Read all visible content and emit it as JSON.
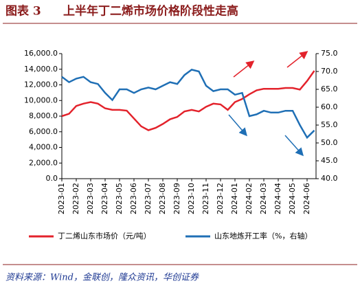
{
  "figure_label": "图表 3",
  "chart_data": {
    "type": "line",
    "title": "上半年丁二烯市场价格阶段性走高",
    "categories": [
      "2023-01",
      null,
      "2023-02",
      null,
      "2023-03",
      null,
      "2023-04",
      null,
      "2023-05",
      null,
      "2023-06",
      null,
      "2023-07",
      null,
      "2023-08",
      null,
      "2023-09",
      null,
      "2023-10",
      null,
      "2023-11",
      null,
      "2023-12",
      null,
      "2024-01",
      null,
      "2024-02",
      null,
      "2024-03",
      null,
      "2024-04",
      null,
      "2024-05",
      null,
      "2024-06",
      null
    ],
    "series": [
      {
        "name": "丁二烯山东市场价（元/吨）",
        "color": "#e3222b",
        "values": [
          8000,
          8300,
          9300,
          9600,
          9800,
          9600,
          9000,
          8800,
          8800,
          8700,
          7700,
          6700,
          6200,
          6500,
          7000,
          7600,
          7900,
          8600,
          8800,
          8600,
          9200,
          9600,
          9500,
          8800,
          9800,
          10200,
          10800,
          11300,
          11500,
          11500,
          11500,
          11600,
          11600,
          11400,
          12500,
          13800
        ]
      },
      {
        "name": "山东地炼开工率（%，右轴）",
        "color": "#1f6fb5",
        "axis": "y2",
        "values": [
          68.5,
          67,
          68,
          68.5,
          67,
          66.5,
          64,
          62,
          65,
          65,
          64,
          65,
          65.5,
          65,
          66,
          67,
          66.5,
          69,
          70.5,
          70,
          66,
          64.5,
          65,
          65,
          63.5,
          64,
          57.5,
          58,
          59,
          58.5,
          58.5,
          59,
          59,
          55,
          51.5,
          53.5
        ]
      }
    ],
    "ylim": [
      0,
      16000
    ],
    "yticks": [
      {
        "value": 0,
        "label": "0.0"
      },
      {
        "value": 2000,
        "label": "2,000.0"
      },
      {
        "value": 4000,
        "label": "4,000.0"
      },
      {
        "value": 6000,
        "label": "6,000.0"
      },
      {
        "value": 8000,
        "label": "8,000.0"
      },
      {
        "value": 10000,
        "label": "10,000.0"
      },
      {
        "value": 12000,
        "label": "12,000.0"
      },
      {
        "value": 14000,
        "label": "14,000.0"
      },
      {
        "value": 16000,
        "label": "16,000.0"
      }
    ],
    "y2lim": [
      40,
      75
    ],
    "y2ticks": [
      {
        "value": 40,
        "label": "40.0"
      },
      {
        "value": 45,
        "label": "45.0"
      },
      {
        "value": 50,
        "label": "50.0"
      },
      {
        "value": 55,
        "label": "55.0"
      },
      {
        "value": 60,
        "label": "60.0"
      },
      {
        "value": 65,
        "label": "65.0"
      },
      {
        "value": 70,
        "label": "70.0"
      },
      {
        "value": 75,
        "label": "75.0"
      }
    ],
    "legend": "bottom"
  },
  "source": "资料来源：Wind，金联创，隆众资讯，华创证券"
}
